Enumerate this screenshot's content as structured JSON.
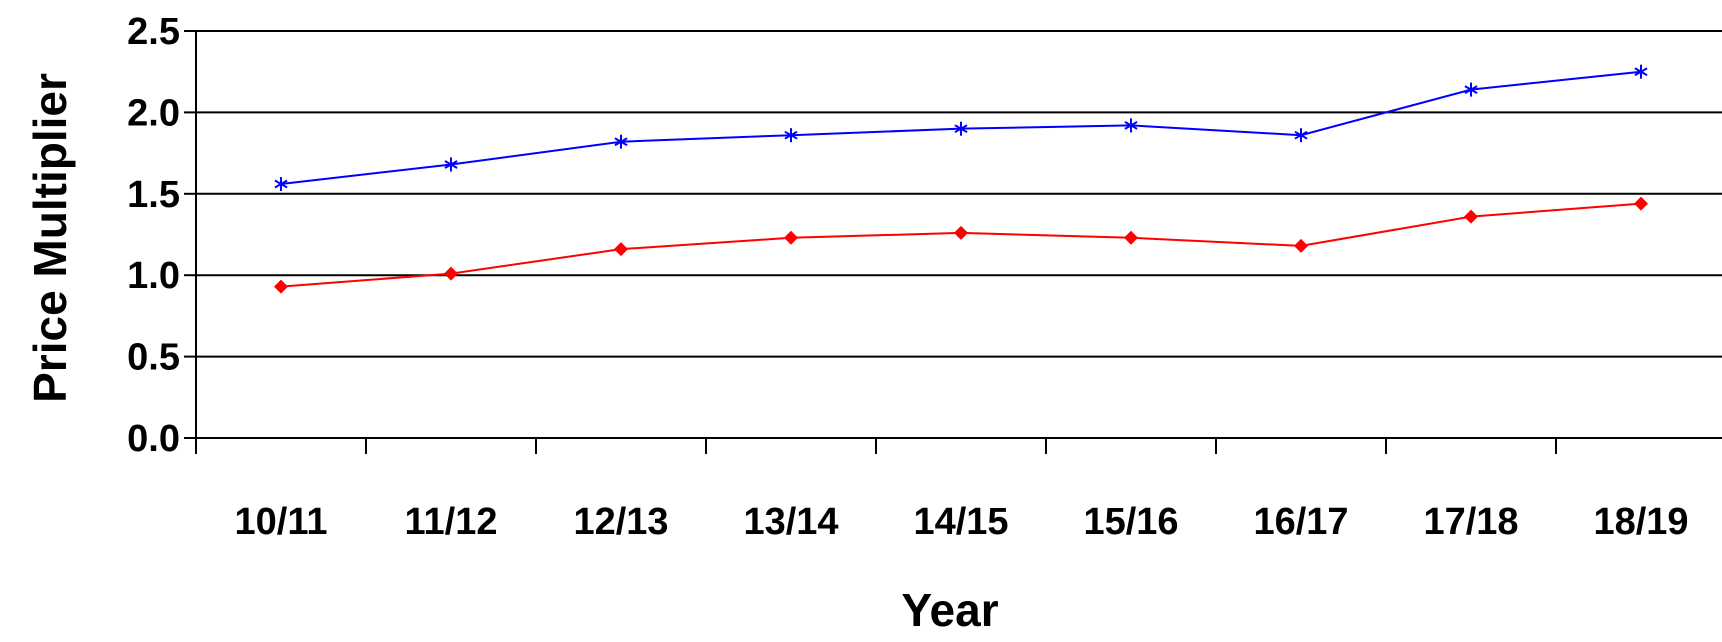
{
  "chart_data": {
    "type": "line",
    "title": "",
    "xlabel": "Year",
    "ylabel": "Price Multiplier",
    "categories": [
      "10/11",
      "11/12",
      "12/13",
      "13/14",
      "14/15",
      "15/16",
      "16/17",
      "17/18",
      "18/19"
    ],
    "ylim": [
      0,
      2.5
    ],
    "yticks": [
      "0.0",
      "0.5",
      "1.0",
      "1.5",
      "2.0",
      "2.5"
    ],
    "grid": true,
    "series": [
      {
        "color": "#0000ff",
        "marker": "asterisk",
        "values": [
          1.56,
          1.68,
          1.82,
          1.86,
          1.9,
          1.92,
          1.86,
          2.14,
          2.25
        ]
      },
      {
        "color": "#ff0000",
        "marker": "diamond",
        "values": [
          0.93,
          1.01,
          1.16,
          1.23,
          1.26,
          1.23,
          1.18,
          1.36,
          1.44
        ]
      }
    ]
  }
}
